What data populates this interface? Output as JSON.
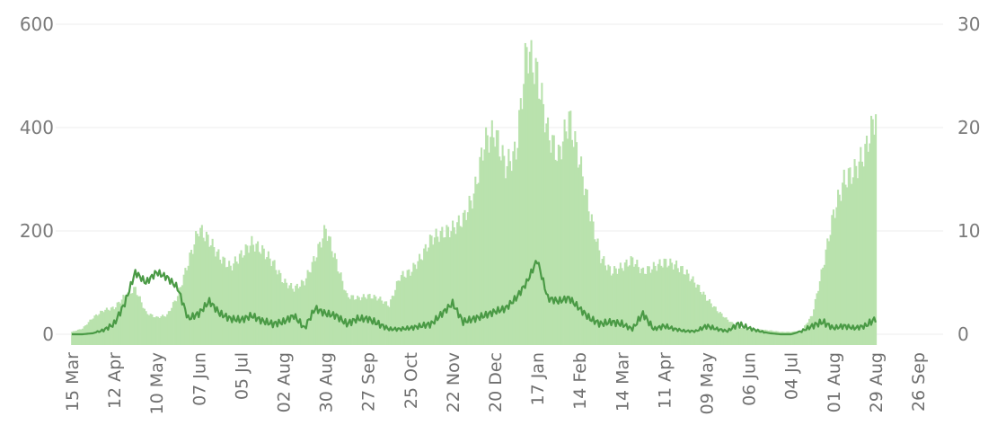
{
  "chart_data": {
    "type": "bar+line",
    "title": "",
    "xlabel": "",
    "ylabel_left": "",
    "ylabel_right": "",
    "grid": true,
    "x_ticks": [
      "15 Mar",
      "12 Apr",
      "10 May",
      "07 Jun",
      "05 Jul",
      "02 Aug",
      "30 Aug",
      "27 Sep",
      "25 Oct",
      "22 Nov",
      "20 Dec",
      "17 Jan",
      "14 Feb",
      "14 Mar",
      "11 Apr",
      "09 May",
      "06 Jun",
      "04 Jul",
      "01 Aug",
      "29 Aug",
      "26 Sep"
    ],
    "y_left": {
      "ticks": [
        0,
        200,
        400,
        600
      ],
      "range": [
        0,
        610
      ]
    },
    "y_right": {
      "ticks": [
        0,
        10,
        20,
        30
      ],
      "range": [
        0,
        30.5
      ]
    },
    "colors": {
      "bars": "#b9e2ad",
      "line": "#4a9a45",
      "grid": "#eeeeee",
      "axis_text": "#7a7a7a"
    },
    "series": [
      {
        "axis": "left",
        "type": "bar",
        "x_start": "15 Mar",
        "x_end": "29 Aug",
        "knots": [
          [
            "15 Mar",
            5
          ],
          [
            "22 Mar",
            12
          ],
          [
            "29 Mar",
            35
          ],
          [
            "05 Apr",
            50
          ],
          [
            "12 Apr",
            55
          ],
          [
            "19 Apr",
            80
          ],
          [
            "26 Apr",
            95
          ],
          [
            "03 May",
            45
          ],
          [
            "10 May",
            35
          ],
          [
            "17 May",
            40
          ],
          [
            "24 May",
            80
          ],
          [
            "31 May",
            150
          ],
          [
            "07 Jun",
            220
          ],
          [
            "14 Jun",
            195
          ],
          [
            "21 Jun",
            160
          ],
          [
            "28 Jun",
            140
          ],
          [
            "05 Jul",
            165
          ],
          [
            "12 Jul",
            190
          ],
          [
            "19 Jul",
            175
          ],
          [
            "26 Jul",
            150
          ],
          [
            "02 Aug",
            110
          ],
          [
            "09 Aug",
            95
          ],
          [
            "16 Aug",
            110
          ],
          [
            "23 Aug",
            160
          ],
          [
            "30 Aug",
            220
          ],
          [
            "06 Sep",
            150
          ],
          [
            "13 Sep",
            80
          ],
          [
            "20 Sep",
            75
          ],
          [
            "27 Sep",
            80
          ],
          [
            "04 Oct",
            75
          ],
          [
            "11 Oct",
            60
          ],
          [
            "18 Oct",
            120
          ],
          [
            "25 Oct",
            130
          ],
          [
            "01 Nov",
            160
          ],
          [
            "08 Nov",
            200
          ],
          [
            "15 Nov",
            210
          ],
          [
            "22 Nov",
            220
          ],
          [
            "29 Nov",
            240
          ],
          [
            "06 Dec",
            290
          ],
          [
            "13 Dec",
            400
          ],
          [
            "20 Dec",
            420
          ],
          [
            "27 Dec",
            350
          ],
          [
            "03 Jan",
            380
          ],
          [
            "10 Jan",
            595
          ],
          [
            "17 Jan",
            540
          ],
          [
            "24 Jan",
            420
          ],
          [
            "31 Jan",
            370
          ],
          [
            "07 Feb",
            450
          ],
          [
            "14 Feb",
            360
          ],
          [
            "21 Feb",
            250
          ],
          [
            "28 Feb",
            160
          ],
          [
            "07 Mar",
            130
          ],
          [
            "14 Mar",
            140
          ],
          [
            "21 Mar",
            155
          ],
          [
            "28 Mar",
            130
          ],
          [
            "04 Apr",
            140
          ],
          [
            "11 Apr",
            150
          ],
          [
            "18 Apr",
            145
          ],
          [
            "25 Apr",
            130
          ],
          [
            "02 May",
            105
          ],
          [
            "09 May",
            75
          ],
          [
            "16 May",
            50
          ],
          [
            "23 May",
            30
          ],
          [
            "30 May",
            15
          ],
          [
            "06 Jun",
            10
          ],
          [
            "13 Jun",
            10
          ],
          [
            "20 Jun",
            8
          ],
          [
            "27 Jun",
            5
          ],
          [
            "04 Jul",
            5
          ],
          [
            "11 Jul",
            8
          ],
          [
            "18 Jul",
            40
          ],
          [
            "25 Jul",
            140
          ],
          [
            "01 Aug",
            250
          ],
          [
            "08 Aug",
            320
          ],
          [
            "15 Aug",
            340
          ],
          [
            "22 Aug",
            380
          ],
          [
            "29 Aug",
            460
          ]
        ]
      },
      {
        "axis": "right",
        "type": "line",
        "knots": [
          [
            "15 Mar",
            0
          ],
          [
            "22 Mar",
            0
          ],
          [
            "29 Mar",
            0.1
          ],
          [
            "05 Apr",
            0.4
          ],
          [
            "12 Apr",
            1.0
          ],
          [
            "19 Apr",
            3.0
          ],
          [
            "26 Apr",
            6.0
          ],
          [
            "03 May",
            5.0
          ],
          [
            "10 May",
            6.0
          ],
          [
            "17 May",
            5.5
          ],
          [
            "24 May",
            4.5
          ],
          [
            "31 May",
            1.5
          ],
          [
            "07 Jun",
            2.0
          ],
          [
            "14 Jun",
            3.2
          ],
          [
            "21 Jun",
            2.0
          ],
          [
            "28 Jun",
            1.5
          ],
          [
            "05 Jul",
            1.4
          ],
          [
            "12 Jul",
            1.8
          ],
          [
            "19 Jul",
            1.3
          ],
          [
            "26 Jul",
            1.0
          ],
          [
            "02 Aug",
            1.2
          ],
          [
            "09 Aug",
            1.8
          ],
          [
            "16 Aug",
            0.6
          ],
          [
            "23 Aug",
            2.5
          ],
          [
            "30 Aug",
            2.0
          ],
          [
            "06 Sep",
            1.8
          ],
          [
            "13 Sep",
            1.0
          ],
          [
            "20 Sep",
            1.5
          ],
          [
            "27 Sep",
            1.5
          ],
          [
            "04 Oct",
            1.0
          ],
          [
            "11 Oct",
            0.5
          ],
          [
            "18 Oct",
            0.5
          ],
          [
            "25 Oct",
            0.6
          ],
          [
            "01 Nov",
            0.8
          ],
          [
            "08 Nov",
            1.0
          ],
          [
            "15 Nov",
            2.0
          ],
          [
            "22 Nov",
            3.0
          ],
          [
            "29 Nov",
            1.2
          ],
          [
            "06 Dec",
            1.5
          ],
          [
            "13 Dec",
            1.8
          ],
          [
            "20 Dec",
            2.2
          ],
          [
            "27 Dec",
            2.5
          ],
          [
            "03 Jan",
            3.5
          ],
          [
            "10 Jan",
            5.0
          ],
          [
            "17 Jan",
            7.2
          ],
          [
            "24 Jan",
            3.5
          ],
          [
            "31 Jan",
            3.2
          ],
          [
            "07 Feb",
            3.5
          ],
          [
            "14 Feb",
            2.5
          ],
          [
            "21 Feb",
            1.5
          ],
          [
            "28 Feb",
            1.0
          ],
          [
            "07 Mar",
            1.2
          ],
          [
            "14 Mar",
            1.0
          ],
          [
            "21 Mar",
            0.5
          ],
          [
            "28 Mar",
            2.0
          ],
          [
            "04 Apr",
            0.5
          ],
          [
            "11 Apr",
            0.8
          ],
          [
            "18 Apr",
            0.5
          ],
          [
            "25 Apr",
            0.3
          ],
          [
            "02 May",
            0.3
          ],
          [
            "09 May",
            0.8
          ],
          [
            "16 May",
            0.5
          ],
          [
            "23 May",
            0.3
          ],
          [
            "30 May",
            1.0
          ],
          [
            "06 Jun",
            0.6
          ],
          [
            "13 Jun",
            0.3
          ],
          [
            "20 Jun",
            0.1
          ],
          [
            "27 Jun",
            0.0
          ],
          [
            "04 Jul",
            0.0
          ],
          [
            "11 Jul",
            0.3
          ],
          [
            "18 Jul",
            0.8
          ],
          [
            "25 Jul",
            1.2
          ],
          [
            "01 Aug",
            0.6
          ],
          [
            "08 Aug",
            0.8
          ],
          [
            "15 Aug",
            0.6
          ],
          [
            "22 Aug",
            0.8
          ],
          [
            "29 Aug",
            1.5
          ]
        ]
      }
    ]
  }
}
